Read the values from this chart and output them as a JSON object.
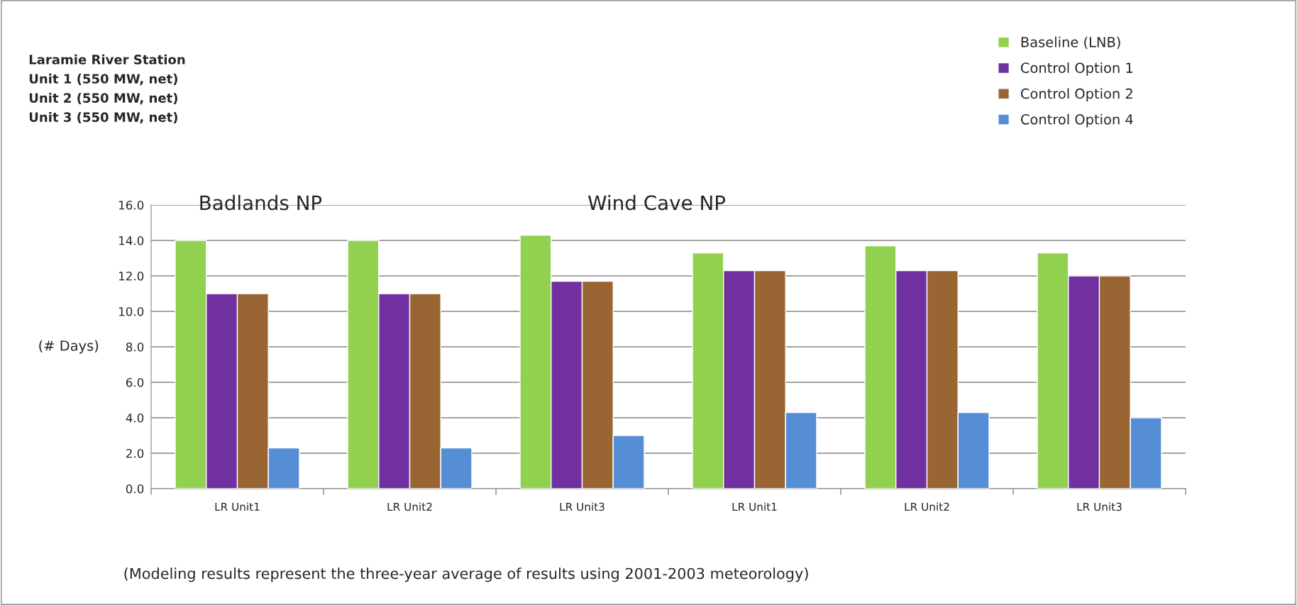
{
  "chart_data": {
    "type": "bar",
    "categories": [
      "LR Unit1",
      "LR Unit2",
      "LR Unit3",
      "LR Unit1",
      "LR Unit2",
      "LR Unit3"
    ],
    "series": [
      {
        "name": "Baseline (LNB)",
        "color": "#92d050",
        "values": [
          14.0,
          14.0,
          14.3,
          13.3,
          13.7,
          13.3
        ]
      },
      {
        "name": "Control Option 1",
        "color": "#7030a0",
        "values": [
          11.0,
          11.0,
          11.7,
          12.3,
          12.3,
          12.0
        ]
      },
      {
        "name": "Control Option 2",
        "color": "#996633",
        "values": [
          11.0,
          11.0,
          11.7,
          12.3,
          12.3,
          12.0
        ]
      },
      {
        "name": "Control Option 4",
        "color": "#558ed5",
        "values": [
          2.3,
          2.3,
          3.0,
          4.3,
          4.3,
          4.0
        ]
      }
    ],
    "ylabel": "(# Days)",
    "ylim": [
      0,
      16
    ],
    "yticks": [
      {
        "value": 0,
        "label": "0.0"
      },
      {
        "value": 2,
        "label": "2.0"
      },
      {
        "value": 4,
        "label": "4.0"
      },
      {
        "value": 6,
        "label": "6.0"
      },
      {
        "value": 8,
        "label": "8.0"
      },
      {
        "value": 10,
        "label": "10.0"
      },
      {
        "value": 12,
        "label": "12.0"
      },
      {
        "value": 14,
        "label": "14.0"
      },
      {
        "value": 16,
        "label": "16.0"
      }
    ],
    "grid": "y",
    "legend": "top right",
    "annotations": [
      "Laramie River Station\nUnit 1 (550 MW, net)\nUnit 2 (550 MW, net)\nUnit 3 (550 MW, net)",
      "Badlands NP",
      "Wind Cave NP",
      "(Modeling results represent the three-year average of results using 2001-2003 meteorology)"
    ]
  }
}
